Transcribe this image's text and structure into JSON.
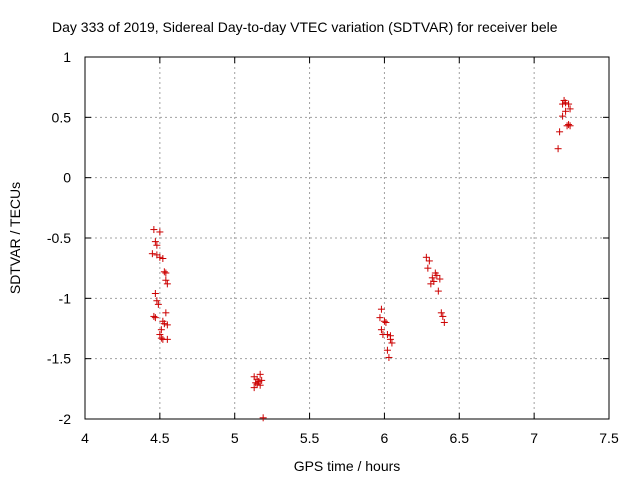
{
  "chart_data": {
    "type": "scatter",
    "title": "Day 333 of 2019, Sidereal Day-to-day VTEC variation (SDTVAR) for receiver bele",
    "xlabel": "GPS time / hours",
    "ylabel": "SDTVAR / TECUs",
    "xlim": [
      4,
      7.5
    ],
    "ylim": [
      -2,
      1
    ],
    "xticks": [
      4,
      4.5,
      5,
      5.5,
      6,
      6.5,
      7,
      7.5
    ],
    "yticks": [
      -2,
      -1.5,
      -1,
      -0.5,
      0,
      0.5,
      1
    ],
    "xtick_labels": [
      "4",
      "4.5",
      "5",
      "5.5",
      "6",
      "6.5",
      "7",
      "7.5"
    ],
    "ytick_labels": [
      "-2",
      "-1.5",
      "-1",
      "-0.5",
      "0",
      "0.5",
      "1"
    ],
    "grid": true,
    "marker": "+",
    "color": "#cc0000",
    "series": [
      {
        "name": "SDTVAR",
        "points": [
          [
            4.46,
            -0.43
          ],
          [
            4.47,
            -0.53
          ],
          [
            4.48,
            -0.56
          ],
          [
            4.5,
            -0.45
          ],
          [
            4.45,
            -0.63
          ],
          [
            4.48,
            -0.64
          ],
          [
            4.5,
            -0.66
          ],
          [
            4.52,
            -0.67
          ],
          [
            4.53,
            -0.78
          ],
          [
            4.54,
            -0.79
          ],
          [
            4.54,
            -0.85
          ],
          [
            4.55,
            -0.88
          ],
          [
            4.47,
            -0.96
          ],
          [
            4.48,
            -1.02
          ],
          [
            4.49,
            -1.05
          ],
          [
            4.46,
            -1.15
          ],
          [
            4.47,
            -1.16
          ],
          [
            4.54,
            -1.12
          ],
          [
            4.52,
            -1.19
          ],
          [
            4.53,
            -1.21
          ],
          [
            4.55,
            -1.22
          ],
          [
            4.51,
            -1.26
          ],
          [
            4.5,
            -1.3
          ],
          [
            4.51,
            -1.33
          ],
          [
            4.52,
            -1.34
          ],
          [
            4.55,
            -1.34
          ],
          [
            5.13,
            -1.65
          ],
          [
            5.15,
            -1.67
          ],
          [
            5.17,
            -1.63
          ],
          [
            5.14,
            -1.7
          ],
          [
            5.16,
            -1.69
          ],
          [
            5.18,
            -1.68
          ],
          [
            5.15,
            -1.71
          ],
          [
            5.17,
            -1.72
          ],
          [
            5.13,
            -1.74
          ],
          [
            5.19,
            -1.99
          ],
          [
            5.98,
            -1.09
          ],
          [
            5.97,
            -1.16
          ],
          [
            6.0,
            -1.19
          ],
          [
            6.01,
            -1.2
          ],
          [
            5.98,
            -1.26
          ],
          [
            6.02,
            -1.3
          ],
          [
            6.04,
            -1.31
          ],
          [
            6.04,
            -1.34
          ],
          [
            6.05,
            -1.37
          ],
          [
            5.99,
            -1.3
          ],
          [
            6.02,
            -1.43
          ],
          [
            6.03,
            -1.49
          ],
          [
            6.28,
            -0.66
          ],
          [
            6.3,
            -0.69
          ],
          [
            6.29,
            -0.75
          ],
          [
            6.34,
            -0.79
          ],
          [
            6.35,
            -0.81
          ],
          [
            6.32,
            -0.83
          ],
          [
            6.37,
            -0.84
          ],
          [
            6.33,
            -0.86
          ],
          [
            6.31,
            -0.88
          ],
          [
            6.36,
            -0.94
          ],
          [
            6.38,
            -1.12
          ],
          [
            6.39,
            -1.15
          ],
          [
            6.4,
            -1.2
          ],
          [
            7.19,
            0.61
          ],
          [
            7.21,
            0.62
          ],
          [
            7.2,
            0.64
          ],
          [
            7.23,
            0.61
          ],
          [
            7.24,
            0.57
          ],
          [
            7.21,
            0.55
          ],
          [
            7.19,
            0.51
          ],
          [
            7.23,
            0.44
          ],
          [
            7.24,
            0.43
          ],
          [
            7.22,
            0.43
          ],
          [
            7.17,
            0.38
          ],
          [
            7.16,
            0.24
          ]
        ]
      }
    ]
  }
}
